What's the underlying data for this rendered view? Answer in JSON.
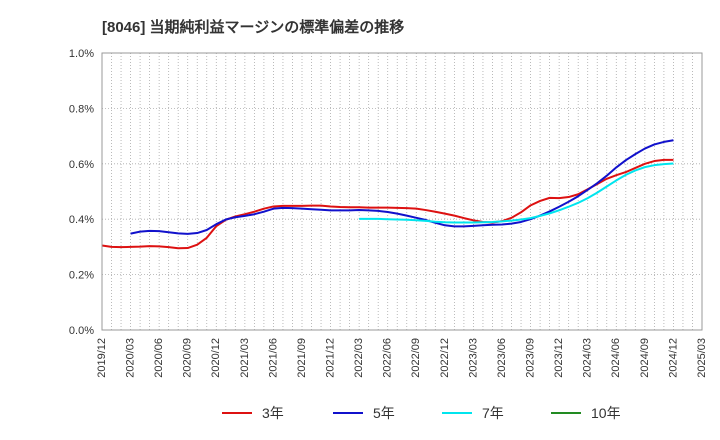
{
  "chart_data": {
    "type": "line",
    "title": "[8046]  当期純利益マージンの標準偏差の推移",
    "xlabel": "",
    "ylabel": "",
    "ylim": [
      0,
      0.01
    ],
    "y_ticks": [
      0,
      0.002,
      0.004,
      0.006,
      0.008,
      0.01
    ],
    "y_tick_labels": [
      "0.0%",
      "0.2%",
      "0.4%",
      "0.6%",
      "0.8%",
      "1.0%"
    ],
    "x_tick_labels": [
      "2019/12",
      "2020/03",
      "2020/06",
      "2020/09",
      "2020/12",
      "2021/03",
      "2021/06",
      "2021/09",
      "2021/12",
      "2022/03",
      "2022/06",
      "2022/09",
      "2022/12",
      "2023/03",
      "2023/06",
      "2023/09",
      "2023/12",
      "2024/03",
      "2024/06",
      "2024/09",
      "2024/12",
      "2025/03"
    ],
    "grid": true,
    "legend_position": "bottom",
    "series": [
      {
        "name": "3年",
        "color": "#dd1111",
        "points": [
          [
            "2019/12",
            0.00305
          ],
          [
            "2020/01",
            0.003
          ],
          [
            "2020/02",
            0.00299
          ],
          [
            "2020/03",
            0.003
          ],
          [
            "2020/04",
            0.00301
          ],
          [
            "2020/05",
            0.00303
          ],
          [
            "2020/06",
            0.00302
          ],
          [
            "2020/07",
            0.00299
          ],
          [
            "2020/08",
            0.00295
          ],
          [
            "2020/09",
            0.00296
          ],
          [
            "2020/10",
            0.00308
          ],
          [
            "2020/11",
            0.00333
          ],
          [
            "2020/12",
            0.00375
          ],
          [
            "2021/01",
            0.00398
          ],
          [
            "2021/02",
            0.0041
          ],
          [
            "2021/03",
            0.00418
          ],
          [
            "2021/04",
            0.00427
          ],
          [
            "2021/05",
            0.00438
          ],
          [
            "2021/06",
            0.00446
          ],
          [
            "2021/07",
            0.00448
          ],
          [
            "2021/08",
            0.00448
          ],
          [
            "2021/09",
            0.00448
          ],
          [
            "2021/10",
            0.00449
          ],
          [
            "2021/11",
            0.00449
          ],
          [
            "2021/12",
            0.00446
          ],
          [
            "2022/01",
            0.00444
          ],
          [
            "2022/02",
            0.00443
          ],
          [
            "2022/03",
            0.00443
          ],
          [
            "2022/04",
            0.00442
          ],
          [
            "2022/05",
            0.00442
          ],
          [
            "2022/06",
            0.00442
          ],
          [
            "2022/07",
            0.00441
          ],
          [
            "2022/08",
            0.0044
          ],
          [
            "2022/09",
            0.00438
          ],
          [
            "2022/10",
            0.00433
          ],
          [
            "2022/11",
            0.00427
          ],
          [
            "2022/12",
            0.0042
          ],
          [
            "2023/01",
            0.00413
          ],
          [
            "2023/02",
            0.00404
          ],
          [
            "2023/03",
            0.00396
          ],
          [
            "2023/04",
            0.0039
          ],
          [
            "2023/05",
            0.00388
          ],
          [
            "2023/06",
            0.00393
          ],
          [
            "2023/07",
            0.00405
          ],
          [
            "2023/08",
            0.00425
          ],
          [
            "2023/09",
            0.0045
          ],
          [
            "2023/10",
            0.00466
          ],
          [
            "2023/11",
            0.00477
          ],
          [
            "2023/12",
            0.00476
          ],
          [
            "2024/01",
            0.0048
          ],
          [
            "2024/02",
            0.0049
          ],
          [
            "2024/03",
            0.00508
          ],
          [
            "2024/04",
            0.00527
          ],
          [
            "2024/05",
            0.00546
          ],
          [
            "2024/06",
            0.00559
          ],
          [
            "2024/07",
            0.0057
          ],
          [
            "2024/08",
            0.00585
          ],
          [
            "2024/09",
            0.006
          ],
          [
            "2024/10",
            0.0061
          ],
          [
            "2024/11",
            0.00614
          ],
          [
            "2024/12",
            0.00614
          ]
        ]
      },
      {
        "name": "5年",
        "color": "#1111cc",
        "points": [
          [
            "2020/03",
            0.00348
          ],
          [
            "2020/04",
            0.00355
          ],
          [
            "2020/05",
            0.00358
          ],
          [
            "2020/06",
            0.00357
          ],
          [
            "2020/07",
            0.00353
          ],
          [
            "2020/08",
            0.00349
          ],
          [
            "2020/09",
            0.00347
          ],
          [
            "2020/10",
            0.0035
          ],
          [
            "2020/11",
            0.00361
          ],
          [
            "2020/12",
            0.00382
          ],
          [
            "2021/01",
            0.00399
          ],
          [
            "2021/02",
            0.00407
          ],
          [
            "2021/03",
            0.00412
          ],
          [
            "2021/04",
            0.00418
          ],
          [
            "2021/05",
            0.00427
          ],
          [
            "2021/06",
            0.00438
          ],
          [
            "2021/07",
            0.00441
          ],
          [
            "2021/08",
            0.0044
          ],
          [
            "2021/09",
            0.00438
          ],
          [
            "2021/10",
            0.00436
          ],
          [
            "2021/11",
            0.00434
          ],
          [
            "2021/12",
            0.00432
          ],
          [
            "2022/01",
            0.00432
          ],
          [
            "2022/02",
            0.00432
          ],
          [
            "2022/03",
            0.00433
          ],
          [
            "2022/04",
            0.00432
          ],
          [
            "2022/05",
            0.0043
          ],
          [
            "2022/06",
            0.00426
          ],
          [
            "2022/07",
            0.0042
          ],
          [
            "2022/08",
            0.00413
          ],
          [
            "2022/09",
            0.00405
          ],
          [
            "2022/10",
            0.00397
          ],
          [
            "2022/11",
            0.00387
          ],
          [
            "2022/12",
            0.00378
          ],
          [
            "2023/01",
            0.00374
          ],
          [
            "2023/02",
            0.00374
          ],
          [
            "2023/03",
            0.00376
          ],
          [
            "2023/04",
            0.00378
          ],
          [
            "2023/05",
            0.0038
          ],
          [
            "2023/06",
            0.00381
          ],
          [
            "2023/07",
            0.00384
          ],
          [
            "2023/08",
            0.0039
          ],
          [
            "2023/09",
            0.004
          ],
          [
            "2023/10",
            0.00413
          ],
          [
            "2023/11",
            0.00428
          ],
          [
            "2023/12",
            0.00445
          ],
          [
            "2024/01",
            0.00463
          ],
          [
            "2024/02",
            0.00483
          ],
          [
            "2024/03",
            0.00506
          ],
          [
            "2024/04",
            0.0053
          ],
          [
            "2024/05",
            0.00557
          ],
          [
            "2024/06",
            0.00587
          ],
          [
            "2024/07",
            0.00613
          ],
          [
            "2024/08",
            0.00635
          ],
          [
            "2024/09",
            0.00655
          ],
          [
            "2024/10",
            0.0067
          ],
          [
            "2024/11",
            0.00679
          ],
          [
            "2024/12",
            0.00685
          ]
        ]
      },
      {
        "name": "7年",
        "color": "#00e5ee",
        "points": [
          [
            "2022/03",
            0.00401
          ],
          [
            "2022/04",
            0.00401
          ],
          [
            "2022/05",
            0.00401
          ],
          [
            "2022/06",
            0.004
          ],
          [
            "2022/07",
            0.00399
          ],
          [
            "2022/08",
            0.00398
          ],
          [
            "2022/09",
            0.00396
          ],
          [
            "2022/10",
            0.00394
          ],
          [
            "2022/11",
            0.00391
          ],
          [
            "2022/12",
            0.00389
          ],
          [
            "2023/01",
            0.00388
          ],
          [
            "2023/02",
            0.00388
          ],
          [
            "2023/03",
            0.00388
          ],
          [
            "2023/04",
            0.00389
          ],
          [
            "2023/05",
            0.0039
          ],
          [
            "2023/06",
            0.00392
          ],
          [
            "2023/07",
            0.00395
          ],
          [
            "2023/08",
            0.00399
          ],
          [
            "2023/09",
            0.00404
          ],
          [
            "2023/10",
            0.00412
          ],
          [
            "2023/11",
            0.00421
          ],
          [
            "2023/12",
            0.00432
          ],
          [
            "2024/01",
            0.00445
          ],
          [
            "2024/02",
            0.00459
          ],
          [
            "2024/03",
            0.00476
          ],
          [
            "2024/04",
            0.00496
          ],
          [
            "2024/05",
            0.00518
          ],
          [
            "2024/06",
            0.0054
          ],
          [
            "2024/07",
            0.0056
          ],
          [
            "2024/08",
            0.00576
          ],
          [
            "2024/09",
            0.00588
          ],
          [
            "2024/10",
            0.00595
          ],
          [
            "2024/11",
            0.00599
          ],
          [
            "2024/12",
            0.00601
          ]
        ]
      },
      {
        "name": "10年",
        "color": "#228b22",
        "points": []
      }
    ]
  }
}
